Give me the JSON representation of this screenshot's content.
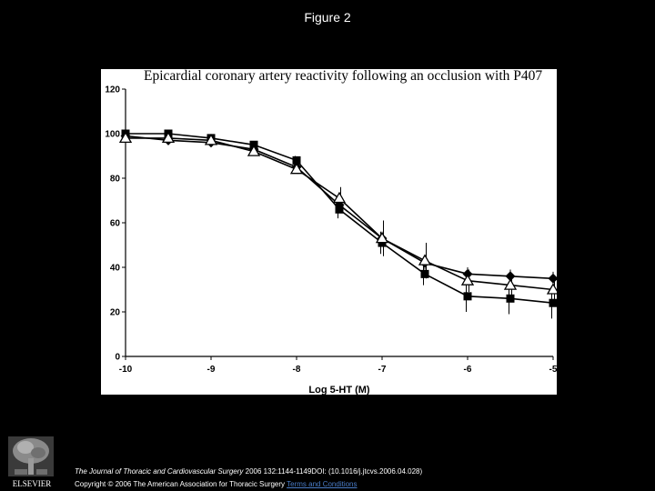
{
  "page": {
    "title": "Figure 2",
    "citation": {
      "journal": "The Journal of Thoracic and Cardiovascular Surgery",
      "details": " 2006 132:1144-1149DOI: (10.1016/j.jtcvs.2006.04.028)",
      "copyright": "Copyright © 2006 The American Association for Thoracic Surgery ",
      "terms_link": "Terms and Conditions"
    },
    "logo_text": "ELSEVIER"
  },
  "chart_data": {
    "type": "line",
    "title": "Epicardial coronary artery reactivity following an occlusion with P407",
    "xlabel": "Log 5-HT (M)",
    "ylabel": "",
    "xlim": [
      -10,
      -5
    ],
    "ylim": [
      0,
      120
    ],
    "x_ticks": [
      -10,
      -9,
      -8,
      -7,
      -6,
      -5
    ],
    "x_tick_labels": [
      "-10",
      "-9",
      "-8",
      "-7",
      "-6",
      "-5"
    ],
    "y_ticks": [
      0,
      20,
      40,
      60,
      80,
      100,
      120
    ],
    "y_tick_labels": [
      "0",
      "20",
      "40",
      "60",
      "80",
      "100",
      "120"
    ],
    "x": [
      -10,
      -9.5,
      -9,
      -8.5,
      -8,
      -7.5,
      -7,
      -6.5,
      -6,
      -5.5,
      -5
    ],
    "series": [
      {
        "name": "filled square",
        "marker": "square",
        "values": [
          100,
          100,
          98,
          95,
          88,
          66,
          51,
          37,
          27,
          26,
          24
        ],
        "errors": [
          0,
          0,
          0,
          0,
          2,
          4,
          5,
          5,
          7,
          7,
          7
        ]
      },
      {
        "name": "filled diamond",
        "marker": "diamond",
        "values": [
          99,
          97,
          96,
          93,
          85,
          68,
          53,
          42,
          37,
          36,
          35
        ],
        "errors": [
          0,
          0,
          0,
          0,
          2,
          3,
          3,
          3,
          3,
          3,
          3
        ]
      },
      {
        "name": "open triangle",
        "marker": "triangle",
        "values": [
          98,
          98,
          97,
          92,
          84,
          71,
          53,
          43,
          34,
          32,
          30
        ],
        "errors": [
          0,
          0,
          0,
          0,
          2,
          5,
          8,
          8,
          5,
          5,
          5
        ]
      }
    ],
    "grid": false,
    "legend": "none"
  }
}
